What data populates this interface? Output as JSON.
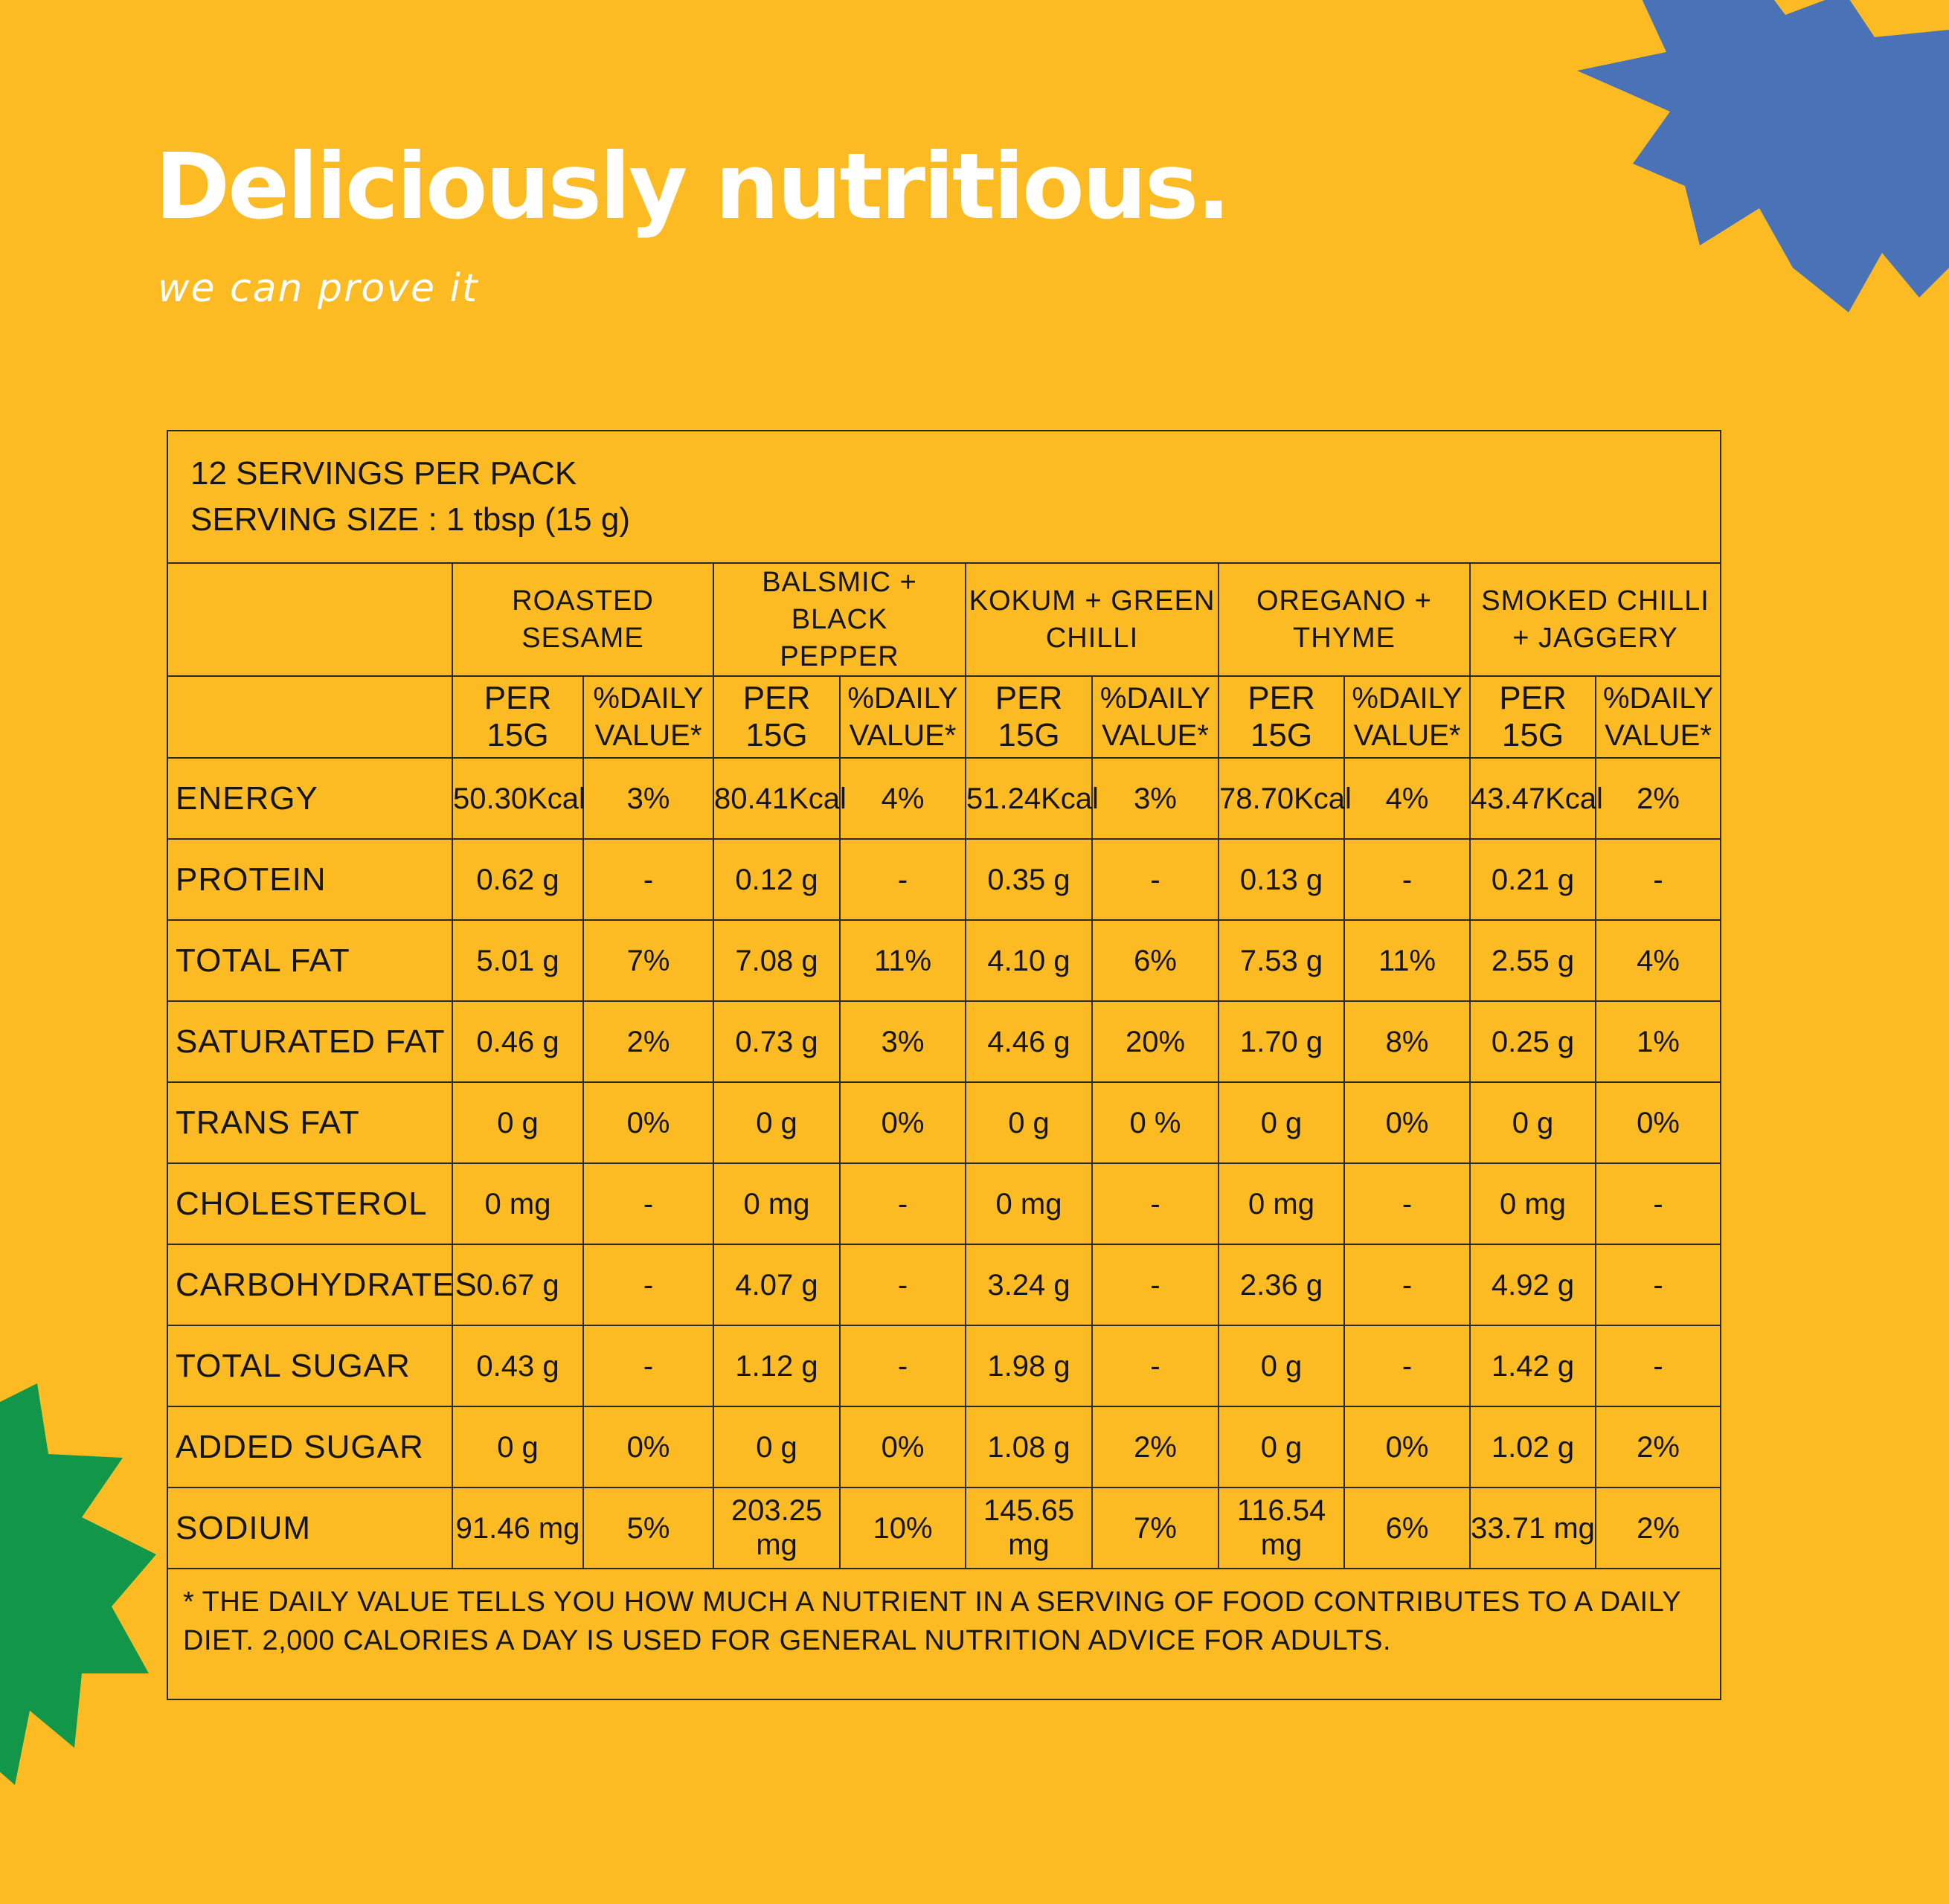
{
  "colors": {
    "background": "#FCBB23",
    "blob_blue": "#4A72B7",
    "blob_green": "#12974A",
    "text_light": "#FFFFFF",
    "text_dark": "#151515"
  },
  "header": {
    "title": "Deliciously nutritious.",
    "tagline": "we can prove it"
  },
  "table": {
    "serving_line_1": "12 SERVINGS PER PACK",
    "serving_line_2": "SERVING SIZE : 1 tbsp (15 g)",
    "flavors": [
      {
        "line1": "ROASTED SESAME",
        "line2": ""
      },
      {
        "line1": "BALSMIC + BLACK",
        "line2": "PEPPER"
      },
      {
        "line1": "KOKUM + GREEN",
        "line2": "CHILLI"
      },
      {
        "line1": "OREGANO +",
        "line2": "THYME"
      },
      {
        "line1": "SMOKED CHILLI",
        "line2": "+ JAGGERY"
      }
    ],
    "sub_headers": {
      "per": "PER 15G",
      "dv_line1": "%DAILY",
      "dv_line2": "VALUE*"
    },
    "rows": [
      {
        "label": "ENERGY",
        "cells": [
          {
            "per": "50.30Kcal",
            "dv": "3%"
          },
          {
            "per": "80.41Kcal",
            "dv": "4%"
          },
          {
            "per": "51.24Kcal",
            "dv": "3%"
          },
          {
            "per": "78.70Kcal",
            "dv": "4%"
          },
          {
            "per": "43.47Kcal",
            "dv": "2%"
          }
        ]
      },
      {
        "label": "PROTEIN",
        "cells": [
          {
            "per": "0.62 g",
            "dv": "-"
          },
          {
            "per": "0.12 g",
            "dv": "-"
          },
          {
            "per": "0.35 g",
            "dv": "-"
          },
          {
            "per": "0.13 g",
            "dv": "-"
          },
          {
            "per": "0.21 g",
            "dv": "-"
          }
        ]
      },
      {
        "label": "TOTAL FAT",
        "cells": [
          {
            "per": "5.01 g",
            "dv": "7%"
          },
          {
            "per": "7.08 g",
            "dv": "11%"
          },
          {
            "per": "4.10 g",
            "dv": "6%"
          },
          {
            "per": "7.53 g",
            "dv": "11%"
          },
          {
            "per": "2.55 g",
            "dv": "4%"
          }
        ]
      },
      {
        "label": "SATURATED FAT",
        "cells": [
          {
            "per": "0.46 g",
            "dv": "2%"
          },
          {
            "per": "0.73 g",
            "dv": "3%"
          },
          {
            "per": "4.46 g",
            "dv": "20%"
          },
          {
            "per": "1.70 g",
            "dv": "8%"
          },
          {
            "per": "0.25 g",
            "dv": "1%"
          }
        ]
      },
      {
        "label": "TRANS FAT",
        "cells": [
          {
            "per": "0 g",
            "dv": "0%"
          },
          {
            "per": "0 g",
            "dv": "0%"
          },
          {
            "per": "0 g",
            "dv": "0 %"
          },
          {
            "per": "0 g",
            "dv": "0%"
          },
          {
            "per": "0 g",
            "dv": "0%"
          }
        ]
      },
      {
        "label": "CHOLESTEROL",
        "cells": [
          {
            "per": "0 mg",
            "dv": "-"
          },
          {
            "per": "0 mg",
            "dv": "-"
          },
          {
            "per": "0 mg",
            "dv": "-"
          },
          {
            "per": "0 mg",
            "dv": "-"
          },
          {
            "per": "0 mg",
            "dv": "-"
          }
        ]
      },
      {
        "label": "CARBOHYDRATES",
        "cells": [
          {
            "per": "0.67 g",
            "dv": "-"
          },
          {
            "per": "4.07 g",
            "dv": "-"
          },
          {
            "per": "3.24 g",
            "dv": "-"
          },
          {
            "per": "2.36 g",
            "dv": "-"
          },
          {
            "per": "4.92 g",
            "dv": "-"
          }
        ]
      },
      {
        "label": "TOTAL SUGAR",
        "cells": [
          {
            "per": "0.43 g",
            "dv": "-"
          },
          {
            "per": "1.12 g",
            "dv": "-"
          },
          {
            "per": "1.98 g",
            "dv": "-"
          },
          {
            "per": "0 g",
            "dv": "-"
          },
          {
            "per": "1.42 g",
            "dv": "-"
          }
        ]
      },
      {
        "label": "ADDED SUGAR",
        "cells": [
          {
            "per": "0 g",
            "dv": "0%"
          },
          {
            "per": "0 g",
            "dv": "0%"
          },
          {
            "per": "1.08 g",
            "dv": "2%"
          },
          {
            "per": "0 g",
            "dv": "0%"
          },
          {
            "per": "1.02 g",
            "dv": "2%"
          }
        ]
      },
      {
        "label": "SODIUM",
        "cells": [
          {
            "per": "91.46 mg",
            "dv": "5%"
          },
          {
            "per": "203.25 mg",
            "dv": "10%"
          },
          {
            "per": "145.65 mg",
            "dv": "7%"
          },
          {
            "per": "116.54 mg",
            "dv": "6%"
          },
          {
            "per": "33.71 mg",
            "dv": "2%"
          }
        ]
      }
    ],
    "footnote": "* THE DAILY VALUE TELLS YOU HOW MUCH A NUTRIENT IN A SERVING OF FOOD CONTRIBUTES TO A DAILY DIET. 2,000 CALORIES A DAY IS USED FOR GENERAL NUTRITION ADVICE FOR ADULTS."
  }
}
